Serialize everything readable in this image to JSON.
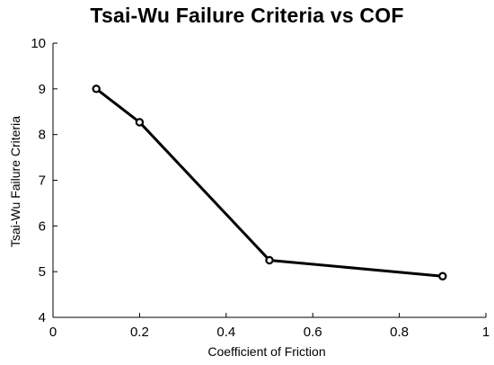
{
  "chart_data": {
    "type": "line",
    "title": "Tsai-Wu Failure Criteria vs COF",
    "xlabel": "Coefficient of Friction",
    "ylabel": "Tsai-Wu Failure Criteria",
    "xlim": [
      0,
      1
    ],
    "ylim": [
      4,
      10
    ],
    "xticks": [
      0,
      0.2,
      0.4,
      0.6,
      0.8,
      1
    ],
    "xtick_labels": [
      "0",
      "0.2",
      "0.4",
      "0.6",
      "0.8",
      "1"
    ],
    "yticks": [
      4,
      5,
      6,
      7,
      8,
      9,
      10
    ],
    "ytick_labels": [
      "4",
      "5",
      "6",
      "7",
      "8",
      "9",
      "10"
    ],
    "grid": false,
    "legend": "none",
    "series": [
      {
        "x": [
          0.1,
          0.2,
          0.5,
          0.9
        ],
        "y": [
          9.0,
          8.27,
          5.25,
          4.9
        ],
        "color": "#000000",
        "marker": "open-circle"
      }
    ]
  }
}
